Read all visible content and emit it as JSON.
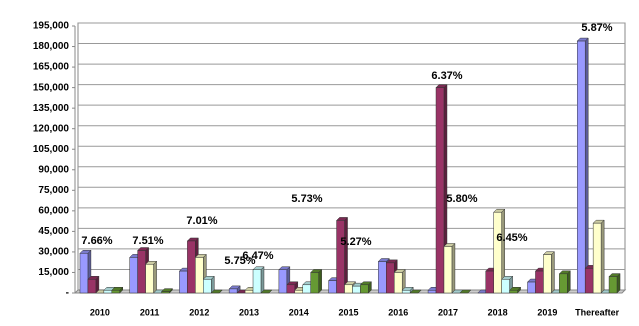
{
  "chart_data": {
    "type": "bar",
    "categories": [
      "2010",
      "2011",
      "2012",
      "2013",
      "2014",
      "2015",
      "2016",
      "2017",
      "2018",
      "2019",
      "Thereafter"
    ],
    "series": [
      {
        "color": "#9999ff",
        "values": [
          29000,
          26000,
          16000,
          3000,
          17000,
          9000,
          23000,
          2000,
          0,
          8000,
          184000
        ]
      },
      {
        "color": "#993366",
        "values": [
          10000,
          31000,
          38000,
          0,
          6000,
          53000,
          22000,
          150000,
          16000,
          16000,
          18000
        ]
      },
      {
        "color": "#ffffcc",
        "values": [
          0,
          21000,
          26000,
          2000,
          2000,
          6000,
          15000,
          34000,
          59000,
          28000,
          51000
        ]
      },
      {
        "color": "#ccffff",
        "values": [
          2000,
          0,
          10000,
          17000,
          6000,
          5000,
          2000,
          0,
          10000,
          0,
          0
        ]
      },
      {
        "color": "#669933",
        "values": [
          2000,
          1000,
          0,
          0,
          15000,
          6000,
          0,
          0,
          2000,
          14000,
          12000
        ]
      }
    ],
    "annotations": [
      "7.66%",
      "7.51%",
      "7.01%",
      "5.75%",
      "6.47%",
      "5.73%",
      "5.27%",
      "6.37%",
      "5.80%",
      "6.45%",
      "5.87%"
    ],
    "ylim": [
      0,
      195000
    ],
    "yticks": [
      {
        "value": 0,
        "label": "-"
      },
      {
        "value": 15000,
        "label": "15,000"
      },
      {
        "value": 30000,
        "label": "30,000"
      },
      {
        "value": 45000,
        "label": "45,000"
      },
      {
        "value": 60000,
        "label": "60,000"
      },
      {
        "value": 75000,
        "label": "75,000"
      },
      {
        "value": 90000,
        "label": "90,000"
      },
      {
        "value": 105000,
        "label": "105,000"
      },
      {
        "value": 120000,
        "label": "120,000"
      },
      {
        "value": 135000,
        "label": "135,000"
      },
      {
        "value": 150000,
        "label": "150,000"
      },
      {
        "value": 165000,
        "label": "165,000"
      },
      {
        "value": 180000,
        "label": "180,000"
      },
      {
        "value": 195000,
        "label": "195,000"
      }
    ],
    "grid": true
  }
}
